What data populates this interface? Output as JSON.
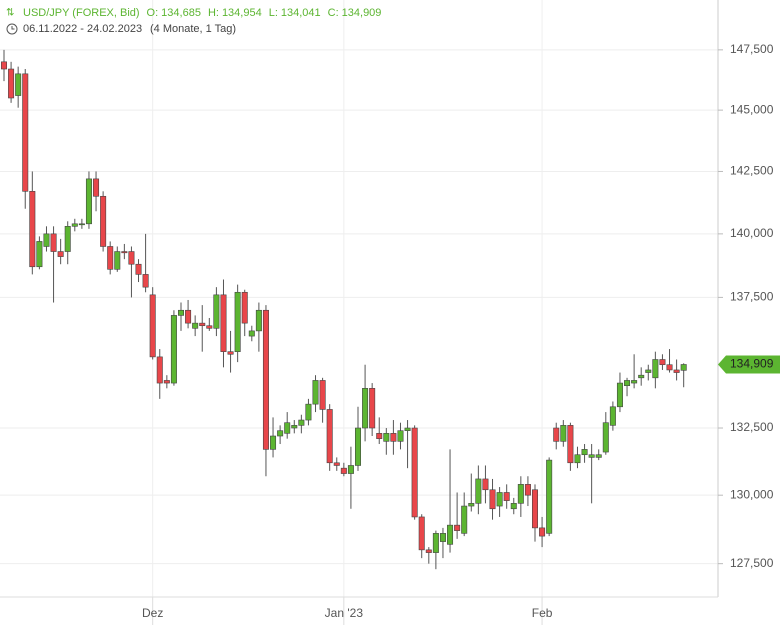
{
  "header": {
    "symbol": "USD/JPY (FOREX, Bid)",
    "ohlc_labels": [
      "O:",
      "H:",
      "L:",
      "C:"
    ],
    "ohlc_values": [
      {
        "value": 134685,
        "label": "134,685"
      },
      {
        "value": 134954,
        "label": "134,954"
      },
      {
        "value": 134041,
        "label": "134,041"
      },
      {
        "value": 134909,
        "label": "134,909"
      }
    ],
    "date_range": "06.11.2022 - 24.02.2023",
    "period": "(4 Monate, 1 Tag)"
  },
  "chart_data": {
    "type": "candlestick",
    "log_scale": true,
    "grid": true,
    "up_color": "#5cb531",
    "down_color": "#e8464a",
    "categories": [
      null,
      null,
      null,
      null,
      null,
      null,
      null,
      null,
      null,
      null,
      null,
      null,
      null,
      null,
      null,
      null,
      null,
      null,
      null,
      null,
      null,
      "Dez",
      null,
      null,
      null,
      null,
      null,
      null,
      null,
      null,
      null,
      null,
      null,
      null,
      null,
      null,
      null,
      null,
      null,
      null,
      null,
      null,
      null,
      null,
      null,
      null,
      null,
      null,
      "Jan '23",
      null,
      null,
      null,
      null,
      null,
      null,
      null,
      null,
      null,
      null,
      null,
      null,
      null,
      null,
      null,
      null,
      null,
      null,
      null,
      null,
      null,
      null,
      null,
      null,
      null,
      null,
      null,
      "Feb",
      null,
      null,
      null,
      null,
      null,
      null,
      null,
      null,
      null,
      null,
      null,
      null,
      null,
      null,
      null,
      null,
      null,
      null,
      null,
      null
    ],
    "open": [
      147000,
      146700,
      145600,
      146500,
      141700,
      138700,
      139500,
      140000,
      139300,
      139300,
      140300,
      140400,
      140400,
      142200,
      141500,
      139500,
      138600,
      139300,
      139300,
      138800,
      138400,
      137600,
      135200,
      134300,
      134200,
      136800,
      137000,
      136300,
      136500,
      136400,
      136300,
      137600,
      135400,
      135400,
      137700,
      136000,
      136200,
      137000,
      131700,
      132200,
      132300,
      132500,
      132600,
      132800,
      133400,
      134300,
      133200,
      131200,
      131000,
      130800,
      131100,
      132500,
      134000,
      132300,
      132000,
      132300,
      132000,
      132400,
      132500,
      129200,
      128000,
      127900,
      128300,
      128200,
      128900,
      128600,
      129600,
      129700,
      130600,
      130200,
      129600,
      130100,
      129500,
      129700,
      130400,
      130200,
      128800,
      128600,
      132500,
      132000,
      132600,
      131200,
      131500,
      131400,
      131400,
      131600,
      132600,
      133300,
      134100,
      134200,
      134400,
      134600,
      134400,
      135100,
      134900,
      134700,
      134685
    ],
    "high": [
      147500,
      147000,
      146800,
      146700,
      142500,
      139900,
      140300,
      140300,
      139800,
      140500,
      140600,
      140600,
      142500,
      142500,
      141700,
      139700,
      139500,
      139600,
      139500,
      139000,
      140000,
      137900,
      135500,
      134500,
      137000,
      137300,
      137400,
      136800,
      137200,
      136700,
      137900,
      138200,
      136200,
      138000,
      137800,
      136400,
      137300,
      137200,
      132900,
      132600,
      133100,
      132800,
      133000,
      133600,
      134500,
      134400,
      133400,
      131400,
      131200,
      131800,
      133300,
      134900,
      134200,
      132900,
      132500,
      132800,
      132700,
      132800,
      132600,
      129300,
      128100,
      128700,
      128800,
      131700,
      130100,
      130100,
      130800,
      131100,
      131100,
      130600,
      130300,
      130400,
      129900,
      130700,
      130700,
      130400,
      129200,
      131400,
      132700,
      132800,
      132700,
      131800,
      131900,
      131900,
      131700,
      133100,
      133500,
      134600,
      134400,
      135300,
      134800,
      134900,
      135400,
      135300,
      135500,
      135100,
      134954
    ],
    "low": [
      146200,
      145300,
      145100,
      141000,
      138400,
      138600,
      139300,
      137300,
      138800,
      138800,
      140100,
      140200,
      140200,
      140900,
      139300,
      138400,
      138500,
      139000,
      137500,
      138100,
      137700,
      135100,
      133600,
      134000,
      134100,
      136200,
      136300,
      136000,
      135400,
      136200,
      136000,
      134800,
      134600,
      135000,
      136000,
      135800,
      135400,
      130700,
      131400,
      131900,
      132100,
      132300,
      132300,
      132600,
      133100,
      132700,
      130900,
      130900,
      130700,
      129500,
      130900,
      132000,
      132200,
      131900,
      131500,
      131500,
      131700,
      131000,
      129100,
      127700,
      127500,
      127300,
      127700,
      127900,
      128400,
      128500,
      129400,
      129300,
      129700,
      129100,
      129200,
      129500,
      129300,
      129200,
      129600,
      128300,
      128100,
      128500,
      131700,
      131800,
      130900,
      131000,
      131200,
      129700,
      131300,
      131500,
      132400,
      133100,
      133700,
      134000,
      134100,
      134300,
      134000,
      134700,
      134600,
      134300,
      134041
    ],
    "close": [
      146700,
      145500,
      146500,
      141700,
      138700,
      139700,
      140000,
      139300,
      139100,
      140300,
      140400,
      140400,
      142200,
      141500,
      139500,
      138600,
      139300,
      139250,
      138800,
      138400,
      137900,
      135200,
      134200,
      134200,
      136800,
      137000,
      136500,
      136500,
      136400,
      136300,
      137600,
      135400,
      135300,
      137700,
      136500,
      136200,
      137000,
      131700,
      132200,
      132400,
      132700,
      132600,
      132800,
      133400,
      134300,
      133200,
      131200,
      131100,
      130800,
      131100,
      132500,
      134000,
      132500,
      132100,
      132300,
      132000,
      132400,
      132500,
      129200,
      128000,
      127900,
      128600,
      128600,
      128900,
      128700,
      129600,
      129700,
      130600,
      130200,
      129500,
      130100,
      129800,
      129700,
      130400,
      130000,
      128800,
      128500,
      131300,
      132000,
      132600,
      131200,
      131500,
      131700,
      131500,
      131500,
      132700,
      133300,
      134200,
      134300,
      134300,
      134500,
      134700,
      135100,
      134900,
      134700,
      134600,
      134909
    ],
    "last_price": {
      "value": 134909,
      "label": "134,909"
    },
    "ylim": [
      126300,
      149600
    ],
    "yticks": [
      {
        "value": 127500,
        "label": "127,500"
      },
      {
        "value": 130000,
        "label": "130,000"
      },
      {
        "value": 132500,
        "label": "132,500"
      },
      {
        "value": 137500,
        "label": "137,500"
      },
      {
        "value": 140000,
        "label": "140,000"
      },
      {
        "value": 142500,
        "label": "142,500"
      },
      {
        "value": 145000,
        "label": "145,000"
      },
      {
        "value": 147500,
        "label": "147,500"
      }
    ]
  }
}
